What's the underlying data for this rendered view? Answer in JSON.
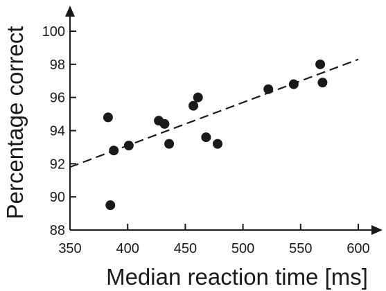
{
  "chart_data": {
    "type": "scatter",
    "xlabel": "Median reaction time [ms]",
    "ylabel": "Percentage correct",
    "xlim": [
      350,
      600
    ],
    "ylim": [
      88,
      100
    ],
    "xticks": [
      350,
      400,
      450,
      500,
      550,
      600
    ],
    "yticks": [
      88,
      90,
      92,
      94,
      96,
      98,
      100
    ],
    "grid": false,
    "legend": "none",
    "points": [
      {
        "x": 383,
        "y": 94.8
      },
      {
        "x": 385,
        "y": 89.5
      },
      {
        "x": 388,
        "y": 92.8
      },
      {
        "x": 401,
        "y": 93.1
      },
      {
        "x": 427,
        "y": 94.6
      },
      {
        "x": 432,
        "y": 94.4
      },
      {
        "x": 436,
        "y": 93.2
      },
      {
        "x": 457,
        "y": 95.5
      },
      {
        "x": 461,
        "y": 96.0
      },
      {
        "x": 468,
        "y": 93.6
      },
      {
        "x": 478,
        "y": 93.2
      },
      {
        "x": 522,
        "y": 96.5
      },
      {
        "x": 544,
        "y": 96.8
      },
      {
        "x": 567,
        "y": 98.0
      },
      {
        "x": 569,
        "y": 96.9
      }
    ],
    "trendline": {
      "style": "dashed",
      "x": [
        350,
        600
      ],
      "y": [
        91.8,
        98.3
      ]
    },
    "colors": {
      "points": "#1a1a1a",
      "axes": "#1a1a1a",
      "background": "#ffffff"
    }
  }
}
